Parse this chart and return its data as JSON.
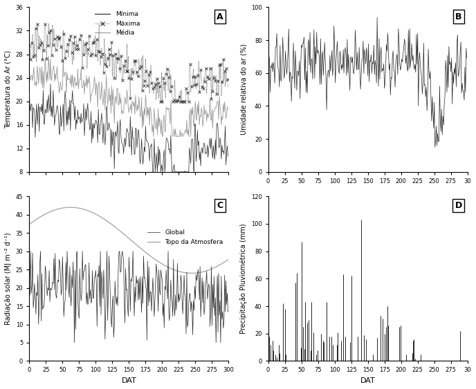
{
  "title_A": "A",
  "title_B": "B",
  "title_C": "C",
  "title_D": "D",
  "ylabel_A": "Temperatura do Ar (°C)",
  "ylabel_B": "Umidade relativa do ar (%)",
  "ylabel_C": "Radiação solar (MJ m⁻² d⁻¹)",
  "ylabel_D": "Precipitação Pluviométrica (mm)",
  "xlabel": "DAT",
  "legend_A": [
    "Mínima",
    "Máxima",
    "Média"
  ],
  "legend_C": [
    "Global",
    "Topo da Atmosfera"
  ],
  "xlim": [
    0,
    300
  ],
  "ylim_A": [
    8,
    36
  ],
  "ylim_B": [
    0,
    100
  ],
  "ylim_C": [
    0,
    45
  ],
  "ylim_D": [
    0,
    120
  ],
  "xticks": [
    0,
    25,
    50,
    75,
    100,
    125,
    150,
    175,
    200,
    225,
    250,
    275,
    300
  ],
  "yticks_A": [
    8,
    12,
    16,
    20,
    24,
    28,
    32,
    36
  ],
  "yticks_B": [
    0,
    20,
    40,
    60,
    80,
    100
  ],
  "yticks_C": [
    0,
    5,
    10,
    15,
    20,
    25,
    30,
    35,
    40,
    45
  ],
  "yticks_D": [
    0,
    20,
    40,
    60,
    80,
    100,
    120
  ],
  "color_minima": "#222222",
  "color_maxima": "#222222",
  "color_media": "#999999",
  "color_global": "#222222",
  "color_topo": "#aaaaaa",
  "color_humidity": "#222222",
  "color_precip": "#222222",
  "background_color": "#ffffff",
  "precip_data": [
    25,
    18,
    5,
    0,
    12,
    0,
    0,
    15,
    8,
    0,
    0,
    5,
    0,
    3,
    0,
    0,
    12,
    6,
    0,
    0,
    0,
    0,
    42,
    0,
    0,
    38,
    5,
    0,
    0,
    0,
    0,
    0,
    0,
    0,
    0,
    0,
    0,
    0,
    0,
    0,
    0,
    57,
    0,
    64,
    0,
    0,
    0,
    0,
    0,
    10,
    87,
    0,
    0,
    25,
    0,
    9,
    43,
    0,
    0,
    28,
    0,
    30,
    0,
    0,
    8,
    43,
    0,
    0,
    21,
    0,
    0,
    0,
    5,
    0,
    8,
    0,
    0,
    0,
    0,
    0,
    20,
    0,
    0,
    15,
    14,
    0,
    0,
    0,
    43,
    0,
    0,
    0,
    18,
    0,
    0,
    18,
    0,
    12,
    0,
    0,
    0,
    0,
    0,
    12,
    0,
    21,
    0,
    0,
    0,
    0,
    15,
    0,
    0,
    63,
    0,
    0,
    18,
    0,
    0,
    0,
    0,
    0,
    0,
    14,
    0,
    62,
    0,
    0,
    0,
    0,
    0,
    0,
    0,
    0,
    0,
    18,
    0,
    0,
    0,
    0,
    103,
    0,
    0,
    0,
    19,
    0,
    0,
    16,
    0,
    0,
    0,
    0,
    0,
    0,
    0,
    0,
    0,
    0,
    5,
    0,
    0,
    0,
    0,
    0,
    17,
    0,
    0,
    0,
    0,
    33,
    0,
    0,
    31,
    0,
    0,
    20,
    0,
    25,
    0,
    40,
    0,
    26,
    0,
    0,
    0,
    0,
    0,
    0,
    0,
    0,
    0,
    0,
    0,
    0,
    0,
    0,
    0,
    25,
    0,
    26,
    0,
    0,
    0,
    0,
    0,
    0,
    0,
    0,
    5,
    0,
    0,
    0,
    0,
    0,
    0,
    0,
    0,
    6,
    15,
    16,
    0,
    2,
    0,
    0,
    0,
    0,
    0,
    0,
    0,
    5,
    0,
    0,
    0,
    0,
    0,
    0,
    0,
    0,
    0,
    0,
    0,
    0,
    0,
    0,
    0,
    0,
    0,
    0,
    0,
    0,
    0,
    0,
    0,
    0,
    0,
    0,
    0,
    0,
    0,
    0,
    0,
    0,
    0,
    0,
    0,
    0,
    0,
    0,
    0,
    0,
    0,
    0,
    0,
    0,
    0,
    0,
    0,
    0,
    0,
    0,
    0,
    0,
    0,
    0,
    0,
    0,
    0,
    0,
    0,
    22,
    0,
    0,
    0,
    0,
    0,
    0,
    0,
    0,
    0,
    0
  ]
}
